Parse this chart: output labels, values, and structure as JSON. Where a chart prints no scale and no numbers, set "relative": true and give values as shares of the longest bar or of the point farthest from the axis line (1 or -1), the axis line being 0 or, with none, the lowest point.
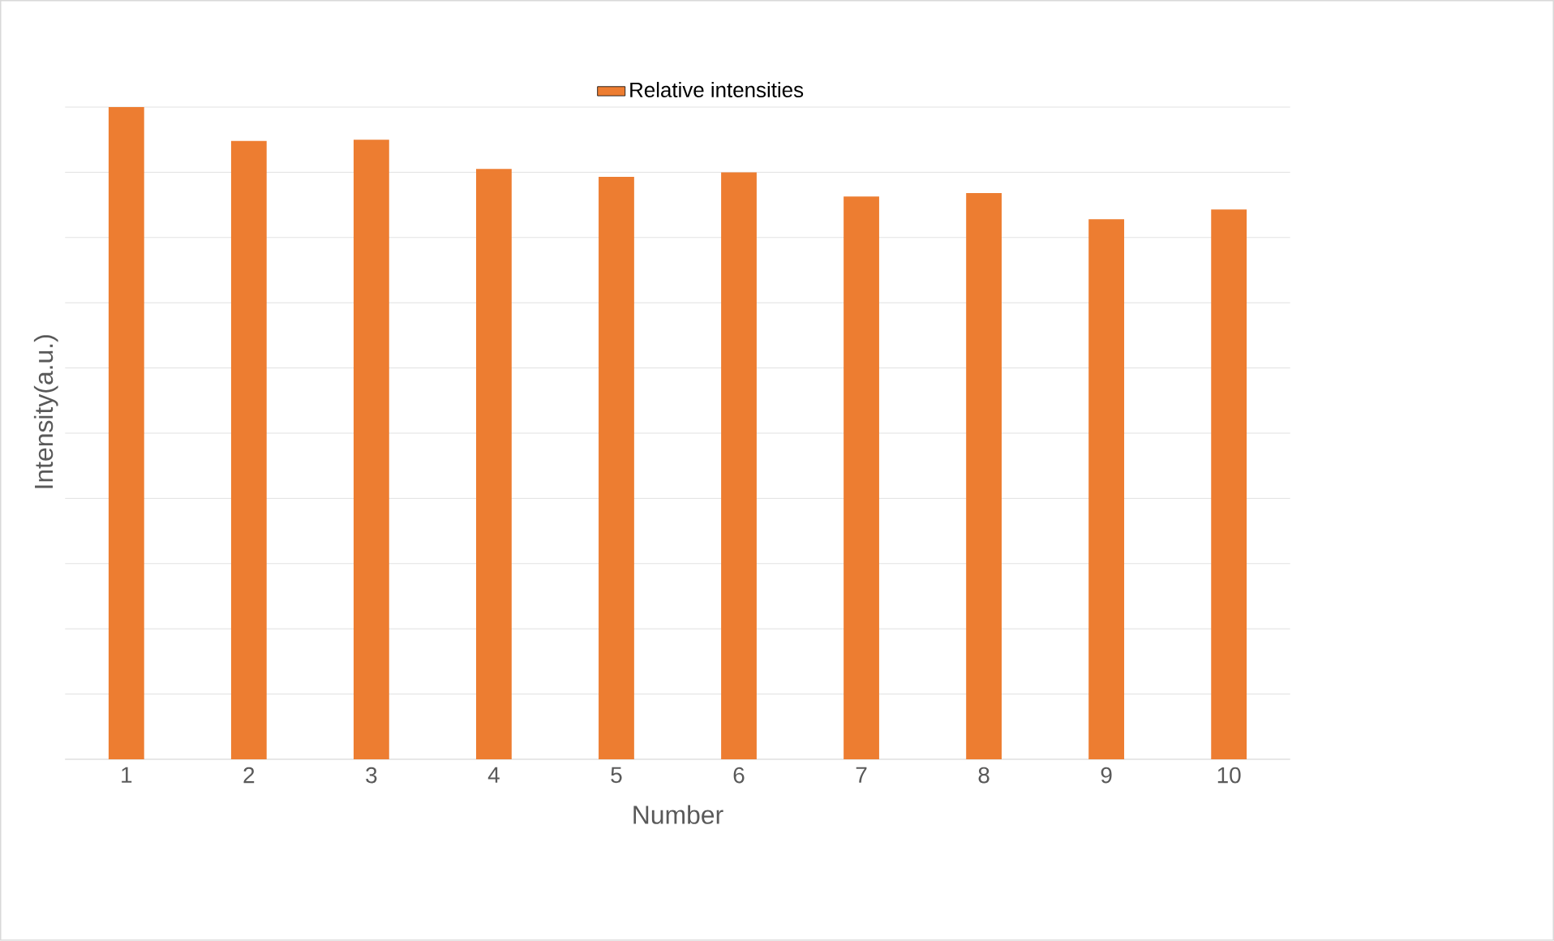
{
  "chart_data": {
    "type": "bar",
    "xlabel": "Number",
    "ylabel": "Intensity(a.u.)",
    "relative": true,
    "grid": "y",
    "legend": "top",
    "categories": [
      "1",
      "2",
      "3",
      "4",
      "5",
      "6",
      "7",
      "8",
      "9",
      "10"
    ],
    "series": [
      {
        "name": "Relative intensities",
        "color": "#ed7d31",
        "values": [
          1,
          0.948,
          0.95,
          0.905,
          0.893,
          0.9,
          0.863,
          0.868,
          0.828,
          0.843
        ]
      }
    ]
  }
}
